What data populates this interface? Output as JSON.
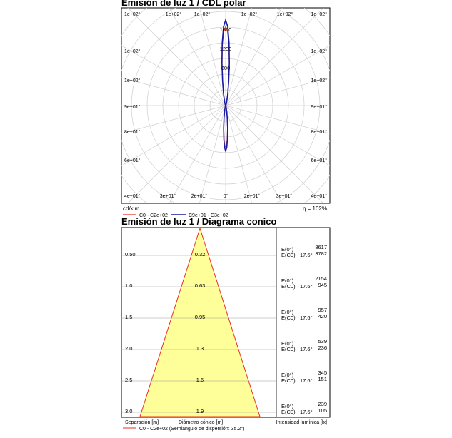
{
  "charts_meta": {
    "polar_title": "Emisión de luz 1 / CDL polar",
    "cone_title": "Emisión de luz 1 / Diagrama conico"
  },
  "chart_data": [
    {
      "type": "polar",
      "title": "Emisión de luz 1 / CDL polar",
      "unit_label": "cd/klm",
      "efficiency_label": "η = 102%",
      "radial_ticks": [
        "800",
        "1200",
        "1600"
      ],
      "radial_tick_values": [
        800,
        1200,
        1600
      ],
      "rmax": 1600,
      "left_angle_labels": [
        "1e+02°",
        "1e+02°",
        "1e+02°",
        "9e+01°",
        "8e+01°",
        "6e+01°",
        "4e+01°"
      ],
      "right_angle_labels": [
        "1e+02°",
        "1e+02°",
        "1e+02°",
        "9e+01°",
        "8e+01°",
        "6e+01°",
        "4e+01°"
      ],
      "bottom_angle_labels": [
        "4e+01°",
        "3e+01°",
        "2e+01°",
        "0°",
        "2e+01°",
        "3e+01°",
        "4e+01°"
      ],
      "series": [
        {
          "name": "C0 - C2e+02",
          "color": "#e8301c",
          "angles": [
            0,
            10,
            20,
            30,
            40,
            50,
            60,
            70,
            80,
            90
          ],
          "values": [
            1180,
            1120,
            960,
            720,
            470,
            280,
            130,
            50,
            12,
            0
          ]
        },
        {
          "name": "C9e+01 - C3e+02",
          "color": "#1a1aa0",
          "angles": [
            0,
            10,
            20,
            30,
            40,
            50,
            60,
            70,
            80,
            90
          ],
          "values": [
            1280,
            1200,
            1000,
            740,
            480,
            280,
            130,
            50,
            12,
            0
          ]
        }
      ]
    },
    {
      "type": "table",
      "title": "Emisión de luz 1 / Diagrama conico",
      "xlabel_separation": "Separación [m]",
      "xlabel_diameter": "Diámetro cónico [m]",
      "xlabel_intensity": "Intensidad lumínica [lx]",
      "footnote": "C0 - C2e+02 (Semiángulo de dispersión: 35.2°)",
      "rows": [
        {
          "distance": "0.50",
          "diameter": "0.32",
          "e0_label": "E(0°)",
          "ec0_label": "E(C0)",
          "angle": "17.6°",
          "e0": "8617",
          "ec0": "3782"
        },
        {
          "distance": "1.0",
          "diameter": "0.63",
          "e0_label": "E(0°)",
          "ec0_label": "E(C0)",
          "angle": "17.6°",
          "e0": "2154",
          "ec0": "945"
        },
        {
          "distance": "1.5",
          "diameter": "0.95",
          "e0_label": "E(0°)",
          "ec0_label": "E(C0)",
          "angle": "17.6°",
          "e0": "957",
          "ec0": "420"
        },
        {
          "distance": "2.0",
          "diameter": "1.3",
          "e0_label": "E(0°)",
          "ec0_label": "E(C0)",
          "angle": "17.6°",
          "e0": "539",
          "ec0": "236"
        },
        {
          "distance": "2.5",
          "diameter": "1.6",
          "e0_label": "E(0°)",
          "ec0_label": "E(C0)",
          "angle": "17.6°",
          "e0": "345",
          "ec0": "151"
        },
        {
          "distance": "3.0",
          "diameter": "1.9",
          "e0_label": "E(0°)",
          "ec0_label": "E(C0)",
          "angle": "17.6°",
          "e0": "239",
          "ec0": "105"
        }
      ],
      "cone_fill": "#ffff99",
      "cone_stroke": "#e8301c"
    }
  ]
}
